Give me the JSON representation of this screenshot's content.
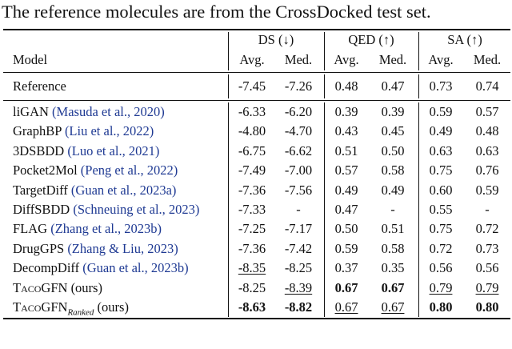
{
  "caption": "The reference molecules are from the CrossDocked test set.",
  "header": {
    "model": "Model",
    "groups": [
      "DS (↓)",
      "QED (↑)",
      "SA (↑)"
    ],
    "sub": [
      "Avg.",
      "Med.",
      "Avg.",
      "Med.",
      "Avg.",
      "Med."
    ]
  },
  "reference": {
    "name": "Reference",
    "values": [
      "-7.45",
      "-7.26",
      "0.48",
      "0.47",
      "0.73",
      "0.74"
    ]
  },
  "rows": [
    {
      "name": "liGAN",
      "cite": "(Masuda et al., 2020)",
      "values": [
        "-6.33",
        "-6.20",
        "0.39",
        "0.39",
        "0.59",
        "0.57"
      ]
    },
    {
      "name": "GraphBP",
      "cite": "(Liu et al., 2022)",
      "values": [
        "-4.80",
        "-4.70",
        "0.43",
        "0.45",
        "0.49",
        "0.48"
      ]
    },
    {
      "name": "3DSBDD",
      "cite": "(Luo et al., 2021)",
      "values": [
        "-6.75",
        "-6.62",
        "0.51",
        "0.50",
        "0.63",
        "0.63"
      ]
    },
    {
      "name": "Pocket2Mol",
      "cite": "(Peng et al., 2022)",
      "values": [
        "-7.49",
        "-7.00",
        "0.57",
        "0.58",
        "0.75",
        "0.76"
      ]
    },
    {
      "name": "TargetDiff",
      "cite": "(Guan et al., 2023a)",
      "values": [
        "-7.36",
        "-7.56",
        "0.49",
        "0.49",
        "0.60",
        "0.59"
      ]
    },
    {
      "name": "DiffSBDD",
      "cite": "(Schneuing et al., 2023)",
      "values": [
        "-7.33",
        "-",
        "0.47",
        "-",
        "0.55",
        "-"
      ]
    },
    {
      "name": "FLAG",
      "cite": "(Zhang et al., 2023b)",
      "values": [
        "-7.25",
        "-7.17",
        "0.50",
        "0.51",
        "0.75",
        "0.72"
      ]
    },
    {
      "name": "DrugGPS",
      "cite": "(Zhang & Liu, 2023)",
      "values": [
        "-7.36",
        "-7.42",
        "0.59",
        "0.58",
        "0.72",
        "0.73"
      ]
    },
    {
      "name": "DecompDiff",
      "cite": "(Guan et al., 2023b)",
      "values": [
        "-8.35",
        "-8.25",
        "0.37",
        "0.35",
        "0.56",
        "0.56"
      ],
      "underline": [
        0
      ]
    },
    {
      "name": "TacoGFN",
      "suffix": "(ours)",
      "values": [
        "-8.25",
        "-8.39",
        "0.67",
        "0.67",
        "0.79",
        "0.79"
      ],
      "bold": [
        2,
        3
      ],
      "underline": [
        1,
        4,
        5
      ]
    },
    {
      "name": "TacoGFN",
      "subscript": "Ranked",
      "suffix": "(ours)",
      "values": [
        "-8.63",
        "-8.82",
        "0.67",
        "0.67",
        "0.80",
        "0.80"
      ],
      "bold": [
        0,
        1,
        4,
        5
      ],
      "underline": [
        2,
        3
      ]
    }
  ]
}
